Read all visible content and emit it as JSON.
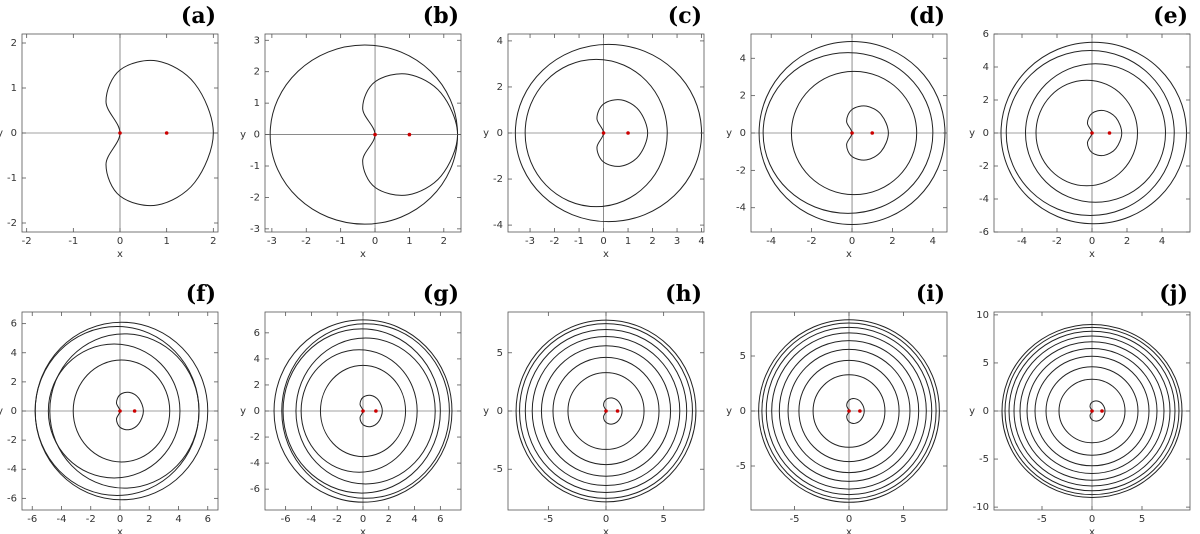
{
  "chart_data": [
    {
      "type": "line",
      "title": "(a)",
      "xlabel": "x",
      "ylabel": "y",
      "xlim": [
        -2.1,
        2.1
      ],
      "ylim": [
        -2.2,
        2.2
      ],
      "xticks": [
        -2,
        -1,
        0,
        1,
        2
      ],
      "yticks": [
        -2,
        -1,
        0,
        1,
        2
      ],
      "color": "#222222",
      "curves": [
        {
          "x": [
            0,
            -0.3,
            0,
            0.8,
            1.6,
            2,
            1.6,
            0.8,
            0,
            -0.3
          ],
          "y": [
            0,
            0.7,
            1.4,
            1.6,
            1.1,
            0,
            -1.1,
            -1.6,
            -1.4,
            -0.7
          ]
        }
      ],
      "points": {
        "x": [
          0,
          1
        ],
        "y": [
          0,
          0
        ],
        "color": "#cc0000"
      }
    },
    {
      "type": "line",
      "title": "(b)",
      "xlabel": "x",
      "ylabel": "y",
      "xlim": [
        -3.2,
        2.5
      ],
      "ylim": [
        -3.1,
        3.2
      ],
      "xticks": [
        -3,
        -2,
        -1,
        0,
        1,
        2
      ],
      "yticks": [
        -3,
        -2,
        -1,
        0,
        1,
        2,
        3
      ],
      "color": "#222222",
      "curves": [
        {
          "x": [
            0,
            -0.36,
            0,
            0.96,
            1.92,
            2.4,
            1.92,
            0.96,
            0,
            -0.36
          ],
          "y": [
            0,
            0.84,
            1.68,
            1.92,
            1.32,
            0,
            -1.32,
            -1.92,
            -1.68,
            -0.84
          ]
        },
        {
          "x": [
            2.4,
            -0.3,
            -3.05,
            -0.3
          ],
          "y": [
            0,
            2.85,
            0,
            -2.85
          ]
        }
      ],
      "points": {
        "x": [
          0,
          1
        ],
        "y": [
          0,
          0
        ],
        "color": "#cc0000"
      }
    },
    {
      "type": "line",
      "title": "(c)",
      "xlabel": "x",
      "ylabel": "y",
      "xlim": [
        -3.9,
        4.1
      ],
      "ylim": [
        -4.3,
        4.3
      ],
      "xticks": [
        -3,
        -2,
        -1,
        0,
        1,
        2,
        3,
        4
      ],
      "yticks": [
        -4,
        -2,
        0,
        2,
        4
      ],
      "color": "#222222",
      "curves": [
        {
          "x": [
            0,
            -0.27,
            0,
            0.72,
            1.44,
            1.8,
            1.44,
            0.72,
            0,
            -0.27
          ],
          "y": [
            0,
            0.63,
            1.26,
            1.44,
            0.99,
            0,
            -0.99,
            -1.44,
            -1.26,
            -0.63
          ]
        },
        {
          "x": [
            2.6,
            -0.3,
            -3.2,
            -0.3
          ],
          "y": [
            0,
            3.2,
            0,
            -3.2
          ]
        },
        {
          "x": [
            4.0,
            0.2,
            -3.6,
            0.2
          ],
          "y": [
            0,
            3.85,
            0,
            -3.85
          ]
        }
      ],
      "points": {
        "x": [
          0,
          1
        ],
        "y": [
          0,
          0
        ],
        "color": "#cc0000"
      }
    },
    {
      "type": "line",
      "title": "(d)",
      "xlabel": "x",
      "ylabel": "y",
      "xlim": [
        -5,
        4.7
      ],
      "ylim": [
        -5.3,
        5.3
      ],
      "xticks": [
        -4,
        -2,
        0,
        2,
        4
      ],
      "yticks": [
        -4,
        -2,
        0,
        2,
        4
      ],
      "color": "#222222",
      "curves": [
        {
          "x": [
            0,
            -0.27,
            0,
            0.72,
            1.44,
            1.8,
            1.44,
            0.72,
            0,
            -0.27
          ],
          "y": [
            0,
            0.63,
            1.26,
            1.44,
            0.99,
            0,
            -0.99,
            -1.44,
            -1.26,
            -0.63
          ]
        },
        {
          "x": [
            3.2,
            0.1,
            -3.0,
            0.1
          ],
          "y": [
            0,
            3.3,
            0,
            -3.3
          ]
        },
        {
          "x": [
            4.0,
            -0.2,
            -4.4,
            -0.2
          ],
          "y": [
            0,
            4.3,
            0,
            -4.3
          ]
        },
        {
          "x": [
            4.6,
            0,
            -4.6,
            0
          ],
          "y": [
            0,
            4.9,
            0,
            -4.9
          ]
        }
      ],
      "points": {
        "x": [
          0,
          1
        ],
        "y": [
          0,
          0
        ],
        "color": "#cc0000"
      }
    },
    {
      "type": "line",
      "title": "(e)",
      "xlabel": "x",
      "ylabel": "y",
      "xlim": [
        -5.6,
        5.6
      ],
      "ylim": [
        -6,
        6
      ],
      "xticks": [
        -4,
        -2,
        0,
        2,
        4
      ],
      "yticks": [
        -6,
        -4,
        -2,
        0,
        2,
        4,
        6
      ],
      "color": "#222222",
      "curves": [
        {
          "x": [
            0,
            -0.26,
            0,
            0.68,
            1.36,
            1.7,
            1.36,
            0.68,
            0,
            -0.26
          ],
          "y": [
            0,
            0.6,
            1.19,
            1.36,
            0.94,
            0,
            -0.94,
            -1.36,
            -1.19,
            -0.6
          ]
        },
        {
          "x": [
            2.6,
            -0.3,
            -3.2,
            -0.3
          ],
          "y": [
            0,
            3.2,
            0,
            -3.2
          ]
        },
        {
          "x": [
            4.2,
            0.2,
            -3.8,
            0.2
          ],
          "y": [
            0,
            4.2,
            0,
            -4.2
          ]
        },
        {
          "x": [
            4.7,
            -0.1,
            -4.9,
            -0.1
          ],
          "y": [
            0,
            5.0,
            0,
            -5.0
          ]
        },
        {
          "x": [
            5.4,
            0.1,
            -5.2,
            0.1
          ],
          "y": [
            0,
            5.5,
            0,
            -5.5
          ]
        }
      ],
      "points": {
        "x": [
          0,
          1
        ],
        "y": [
          0,
          0
        ],
        "color": "#cc0000"
      }
    },
    {
      "type": "line",
      "title": "(f)",
      "xlabel": "x",
      "ylabel": "y",
      "xlim": [
        -6.7,
        6.7
      ],
      "ylim": [
        -6.8,
        6.8
      ],
      "xticks": [
        -6,
        -4,
        -2,
        0,
        2,
        4,
        6
      ],
      "yticks": [
        -6,
        -4,
        -2,
        0,
        2,
        4,
        6
      ],
      "color": "#222222",
      "curves": [
        {
          "x": [
            0,
            -0.24,
            0,
            0.64,
            1.28,
            1.6,
            1.28,
            0.64,
            0,
            -0.24
          ],
          "y": [
            0,
            0.56,
            1.12,
            1.28,
            0.88,
            0,
            -0.88,
            -1.28,
            -1.12,
            -0.56
          ]
        },
        {
          "x": [
            3.4,
            0.1,
            -3.2,
            0.1
          ],
          "y": [
            0,
            3.5,
            0,
            -3.5
          ]
        },
        {
          "x": [
            4.1,
            -0.4,
            -4.9,
            -0.4
          ],
          "y": [
            0,
            4.6,
            0,
            -4.6
          ]
        },
        {
          "x": [
            5.4,
            0.3,
            -4.8,
            0.3
          ],
          "y": [
            0,
            5.3,
            0,
            -5.3
          ]
        },
        {
          "x": [
            5.4,
            -0.2,
            -5.8,
            -0.2
          ],
          "y": [
            0,
            5.8,
            0,
            -5.8
          ]
        },
        {
          "x": [
            6.0,
            0.1,
            -5.8,
            0.1
          ],
          "y": [
            0,
            6.1,
            0,
            -6.1
          ]
        }
      ],
      "points": {
        "x": [
          0,
          1
        ],
        "y": [
          0,
          0
        ],
        "color": "#cc0000"
      }
    },
    {
      "type": "line",
      "title": "(g)",
      "xlabel": "x",
      "ylabel": "y",
      "xlim": [
        -7.6,
        7.6
      ],
      "ylim": [
        -7.6,
        7.6
      ],
      "xticks": [
        -6,
        -4,
        -2,
        0,
        2,
        4,
        6
      ],
      "yticks": [
        -6,
        -4,
        -2,
        0,
        2,
        4,
        6
      ],
      "color": "#222222",
      "curves": [
        {
          "x": [
            0,
            -0.23,
            0,
            0.6,
            1.2,
            1.5,
            1.2,
            0.6,
            0,
            -0.23
          ],
          "y": [
            0,
            0.53,
            1.05,
            1.2,
            0.83,
            0,
            -0.83,
            -1.2,
            -1.05,
            -0.53
          ]
        },
        {
          "x": [
            3.3,
            0,
            -3.3,
            0
          ],
          "y": [
            0,
            3.5,
            0,
            -3.5
          ]
        },
        {
          "x": [
            4.2,
            -0.3,
            -4.8,
            -0.3
          ],
          "y": [
            0,
            4.7,
            0,
            -4.7
          ]
        },
        {
          "x": [
            5.6,
            0.2,
            -5.2,
            0.2
          ],
          "y": [
            0,
            5.6,
            0,
            -5.6
          ]
        },
        {
          "x": [
            6.0,
            -0.1,
            -6.2,
            -0.1
          ],
          "y": [
            0,
            6.3,
            0,
            -6.3
          ]
        },
        {
          "x": [
            6.7,
            0.2,
            -6.3,
            0.2
          ],
          "y": [
            0,
            6.7,
            0,
            -6.7
          ]
        },
        {
          "x": [
            6.9,
            0,
            -6.9,
            0
          ],
          "y": [
            0,
            7.0,
            0,
            -7.0
          ]
        }
      ],
      "points": {
        "x": [
          0,
          1
        ],
        "y": [
          0,
          0
        ],
        "color": "#cc0000"
      }
    },
    {
      "type": "line",
      "title": "(h)",
      "xlabel": "x",
      "ylabel": "y",
      "xlim": [
        -8.5,
        8.5
      ],
      "ylim": [
        -8.5,
        8.5
      ],
      "xticks": [
        -5,
        0,
        5
      ],
      "yticks": [
        -5,
        0,
        5
      ],
      "color": "#222222",
      "curves": [
        {
          "x": [
            0,
            -0.21,
            0,
            0.56,
            1.12,
            1.4,
            1.12,
            0.56,
            0,
            -0.21
          ],
          "y": [
            0,
            0.49,
            0.98,
            1.12,
            0.77,
            0,
            -0.77,
            -1.12,
            -0.98,
            -0.49
          ]
        },
        {
          "x": [
            3.3,
            0,
            -3.3,
            0
          ],
          "y": [
            0,
            3.3,
            0,
            -3.3
          ]
        },
        {
          "x": [
            4.6,
            0,
            -4.6,
            0
          ],
          "y": [
            0,
            4.6,
            0,
            -4.6
          ]
        },
        {
          "x": [
            5.6,
            0,
            -5.6,
            0
          ],
          "y": [
            0,
            5.6,
            0,
            -5.6
          ]
        },
        {
          "x": [
            6.4,
            0,
            -6.4,
            0
          ],
          "y": [
            0,
            6.4,
            0,
            -6.4
          ]
        },
        {
          "x": [
            7.0,
            0,
            -7.0,
            0
          ],
          "y": [
            0,
            7.0,
            0,
            -7.0
          ]
        },
        {
          "x": [
            7.5,
            0,
            -7.5,
            0
          ],
          "y": [
            0,
            7.5,
            0,
            -7.5
          ]
        },
        {
          "x": [
            7.8,
            0,
            -7.8,
            0
          ],
          "y": [
            0,
            7.8,
            0,
            -7.8
          ]
        }
      ],
      "points": {
        "x": [
          0,
          1
        ],
        "y": [
          0,
          0
        ],
        "color": "#cc0000"
      }
    },
    {
      "type": "line",
      "title": "(i)",
      "xlabel": "x",
      "ylabel": "y",
      "xlim": [
        -9,
        9
      ],
      "ylim": [
        -9,
        9
      ],
      "xticks": [
        -5,
        0,
        5
      ],
      "yticks": [
        -5,
        0,
        5
      ],
      "color": "#222222",
      "curves": [
        {
          "x": [
            0,
            -0.21,
            0,
            0.56,
            1.12,
            1.4,
            1.12,
            0.56,
            0,
            -0.21
          ],
          "y": [
            0,
            0.49,
            0.98,
            1.12,
            0.77,
            0,
            -0.77,
            -1.12,
            -0.98,
            -0.49
          ]
        },
        {
          "x": [
            3.3,
            0,
            -3.3,
            0
          ],
          "y": [
            0,
            3.3,
            0,
            -3.3
          ]
        },
        {
          "x": [
            4.6,
            0,
            -4.6,
            0
          ],
          "y": [
            0,
            4.6,
            0,
            -4.6
          ]
        },
        {
          "x": [
            5.6,
            0,
            -5.6,
            0
          ],
          "y": [
            0,
            5.6,
            0,
            -5.6
          ]
        },
        {
          "x": [
            6.4,
            0,
            -6.4,
            0
          ],
          "y": [
            0,
            6.4,
            0,
            -6.4
          ]
        },
        {
          "x": [
            7.1,
            0,
            -7.1,
            0
          ],
          "y": [
            0,
            7.1,
            0,
            -7.1
          ]
        },
        {
          "x": [
            7.6,
            0,
            -7.6,
            0
          ],
          "y": [
            0,
            7.6,
            0,
            -7.6
          ]
        },
        {
          "x": [
            8.0,
            0,
            -8.0,
            0
          ],
          "y": [
            0,
            8.0,
            0,
            -8.0
          ]
        },
        {
          "x": [
            8.3,
            0,
            -8.3,
            0
          ],
          "y": [
            0,
            8.3,
            0,
            -8.3
          ]
        }
      ],
      "points": {
        "x": [
          0,
          1
        ],
        "y": [
          0,
          0
        ],
        "color": "#cc0000"
      }
    },
    {
      "type": "line",
      "title": "(j)",
      "xlabel": "x",
      "ylabel": "y",
      "xlim": [
        -9.8,
        9.8
      ],
      "ylim": [
        -10.3,
        10.3
      ],
      "xticks": [
        -5,
        0,
        5
      ],
      "yticks": [
        -10,
        -5,
        0,
        5,
        10
      ],
      "color": "#222222",
      "curves": [
        {
          "x": [
            0,
            -0.2,
            0,
            0.52,
            1.04,
            1.3,
            1.04,
            0.52,
            0,
            -0.2
          ],
          "y": [
            0,
            0.46,
            0.91,
            1.04,
            0.72,
            0,
            -0.72,
            -1.04,
            -0.91,
            -0.46
          ]
        },
        {
          "x": [
            3.3,
            0,
            -3.3,
            0
          ],
          "y": [
            0,
            3.3,
            0,
            -3.3
          ]
        },
        {
          "x": [
            4.6,
            0,
            -4.6,
            0
          ],
          "y": [
            0,
            4.6,
            0,
            -4.6
          ]
        },
        {
          "x": [
            5.7,
            0,
            -5.7,
            0
          ],
          "y": [
            0,
            5.7,
            0,
            -5.7
          ]
        },
        {
          "x": [
            6.5,
            0,
            -6.5,
            0
          ],
          "y": [
            0,
            6.5,
            0,
            -6.5
          ]
        },
        {
          "x": [
            7.2,
            0,
            -7.2,
            0
          ],
          "y": [
            0,
            7.2,
            0,
            -7.2
          ]
        },
        {
          "x": [
            7.8,
            0,
            -7.8,
            0
          ],
          "y": [
            0,
            7.8,
            0,
            -7.8
          ]
        },
        {
          "x": [
            8.3,
            0,
            -8.3,
            0
          ],
          "y": [
            0,
            8.3,
            0,
            -8.3
          ]
        },
        {
          "x": [
            8.7,
            0,
            -8.7,
            0
          ],
          "y": [
            0,
            8.7,
            0,
            -8.7
          ]
        },
        {
          "x": [
            9.0,
            0,
            -9.0,
            0
          ],
          "y": [
            0,
            9.0,
            0,
            -9.0
          ]
        }
      ],
      "points": {
        "x": [
          0,
          1
        ],
        "y": [
          0,
          0
        ],
        "color": "#cc0000"
      }
    }
  ]
}
